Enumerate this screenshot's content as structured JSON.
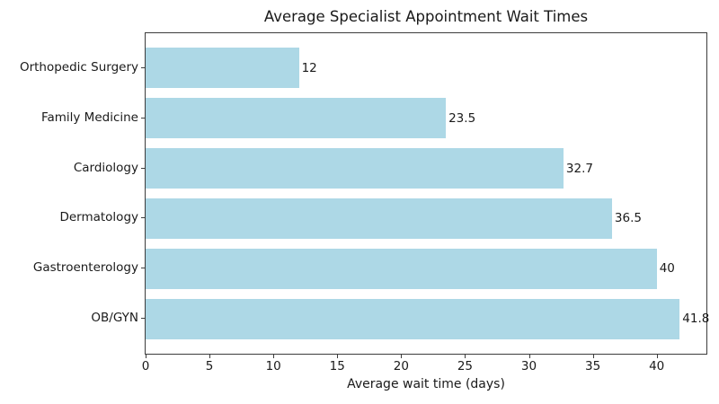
{
  "chart_data": {
    "type": "bar",
    "orientation": "horizontal",
    "title": "Average Specialist Appointment Wait Times",
    "xlabel": "Average wait time (days)",
    "ylabel": "",
    "categories": [
      "Orthopedic Surgery",
      "Family Medicine",
      "Cardiology",
      "Dermatology",
      "Gastroenterology",
      "OB/GYN"
    ],
    "values": [
      12,
      23.5,
      32.7,
      36.5,
      40,
      41.8
    ],
    "value_labels": [
      "12",
      "23.5",
      "32.7",
      "36.5",
      "40",
      "41.8"
    ],
    "x_ticks": [
      0,
      5,
      10,
      15,
      20,
      25,
      30,
      35,
      40
    ],
    "xlim": [
      0,
      43.89
    ],
    "bar_color": "#ADD8E6",
    "axis_color": "#3c3c3c",
    "text_color": "#1a1a1a",
    "grid": false,
    "legend": "none"
  }
}
